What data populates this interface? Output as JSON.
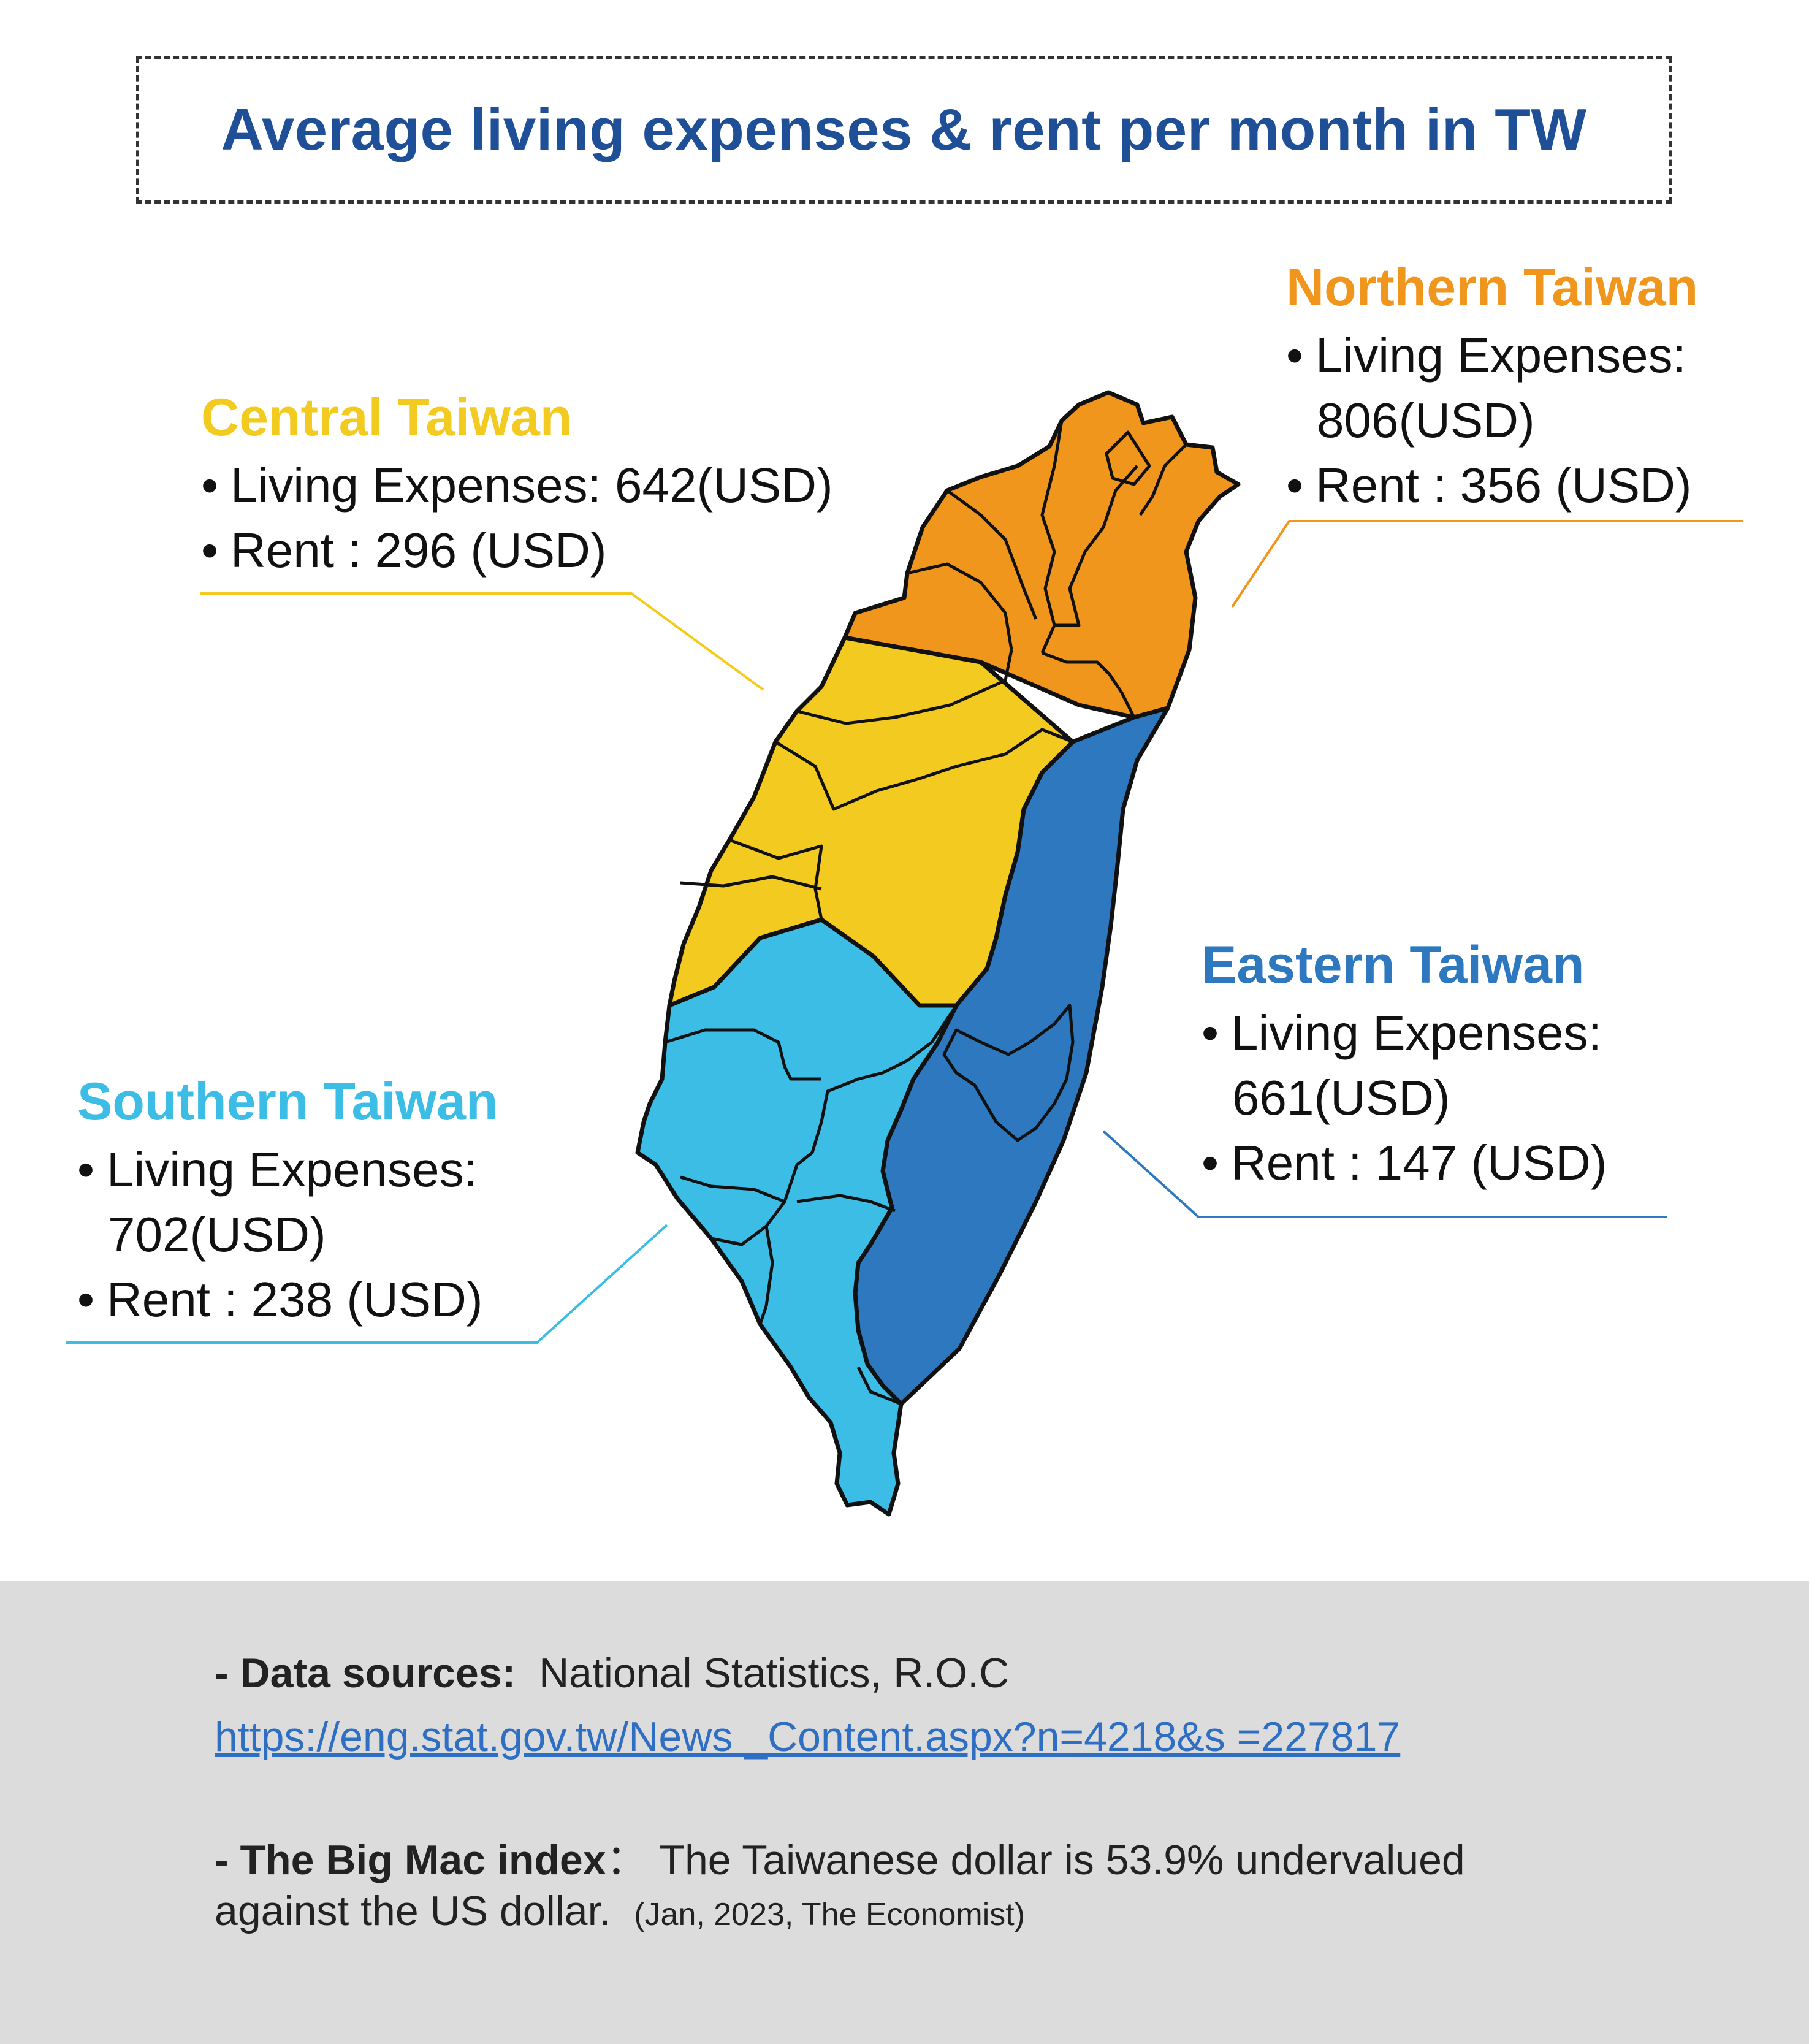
{
  "title": "Average living expenses & rent per month in TW",
  "regions": {
    "central": {
      "name": "Central Taiwan",
      "living": "Living Expenses: 642(USD)",
      "rent": "Rent : 296 (USD)",
      "color": "#f2ca20"
    },
    "northern": {
      "name": "Northern Taiwan",
      "living": "Living Expenses:",
      "living_value": "806(USD)",
      "rent": "Rent : 356 (USD)",
      "color": "#f0961d"
    },
    "eastern": {
      "name": "Eastern Taiwan",
      "living": "Living Expenses:",
      "living_value": "661(USD)",
      "rent": "Rent : 147 (USD)",
      "color": "#2e78bf"
    },
    "southern": {
      "name": "Southern Taiwan",
      "living": "Living Expenses:",
      "living_value": "702(USD)",
      "rent": "Rent : 238 (USD)",
      "color": "#3cbde6"
    }
  },
  "footer": {
    "sources_label": "- Data sources:",
    "sources_text": "National Statistics, R.O.C",
    "sources_link": "https://eng.stat.gov.tw/News _Content.aspx?n=4218&s =227817 ",
    "bigmac_label": "- The Big Mac index",
    "bigmac_sep": "：",
    "bigmac_text": "The Taiwanese dollar is 53.9% undervalued",
    "bigmac_text2": "against the US dollar.",
    "bigmac_source": "(Jan, 2023, The Economist)"
  }
}
